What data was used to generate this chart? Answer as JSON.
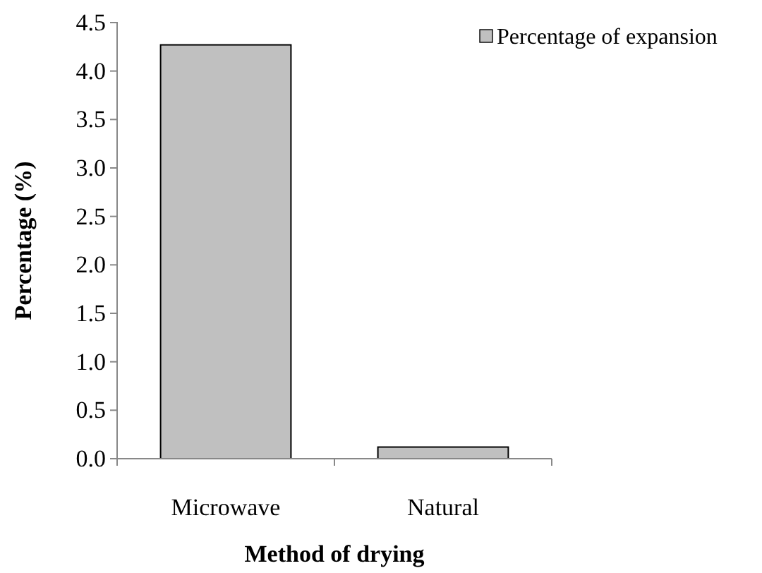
{
  "chart_data": {
    "type": "bar",
    "xlabel": "Method of drying",
    "ylabel": "Percentage (%)",
    "categories": [
      "Microwave",
      "Natural"
    ],
    "series": [
      {
        "name": "Percentage of expansion",
        "color": "#c0c0c0",
        "values": [
          4.27,
          0.12
        ]
      }
    ],
    "ylim": [
      0,
      4.5
    ],
    "yticks": [
      {
        "value": 0,
        "label": "0.0"
      },
      {
        "value": 0.5,
        "label": "0.5"
      },
      {
        "value": 1,
        "label": "1.0"
      },
      {
        "value": 1.5,
        "label": "1.5"
      },
      {
        "value": 2,
        "label": "2.0"
      },
      {
        "value": 2.5,
        "label": "2.5"
      },
      {
        "value": 3,
        "label": "3.0"
      },
      {
        "value": 3.5,
        "label": "3.5"
      },
      {
        "value": 4,
        "label": "4.0"
      },
      {
        "value": 4.5,
        "label": "4.5"
      }
    ],
    "grid": false,
    "legend": "top right"
  }
}
